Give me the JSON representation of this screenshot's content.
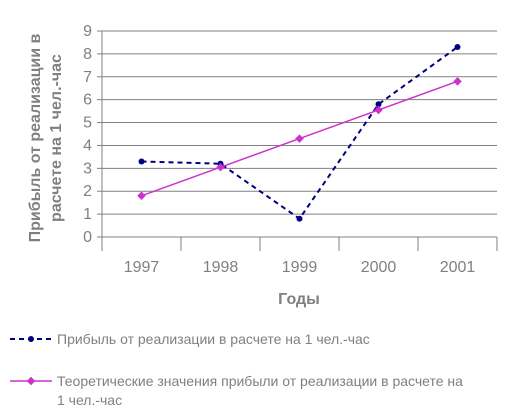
{
  "chart_data": {
    "type": "line",
    "xlabel": "Годы",
    "ylabel_lines": [
      "Прибыль от реализации в",
      "расчете на 1 чел.-час"
    ],
    "x": [
      "1997",
      "1998",
      "1999",
      "2000",
      "2001"
    ],
    "ylim": [
      0,
      9
    ],
    "yticks": [
      0,
      1,
      2,
      3,
      4,
      5,
      6,
      7,
      8,
      9
    ],
    "grid": "horizontal",
    "legend_position": "bottom",
    "series": [
      {
        "name": "Прибыль от реализации в расчете на 1 чел.-час",
        "values": [
          3.3,
          3.2,
          0.8,
          5.8,
          8.3
        ],
        "color": "#000080",
        "line_style": "dashed",
        "marker": "circle"
      },
      {
        "name": "Теоретические значения прибыли от реализации в расчете на 1 чел.-час",
        "name_lines": [
          "Теоретические значения прибыли от реализации в расчете на",
          "1 чел.-час"
        ],
        "values": [
          1.8,
          3.05,
          4.3,
          5.55,
          6.8
        ],
        "color": "#cc33cc",
        "line_style": "solid",
        "marker": "diamond"
      }
    ]
  }
}
